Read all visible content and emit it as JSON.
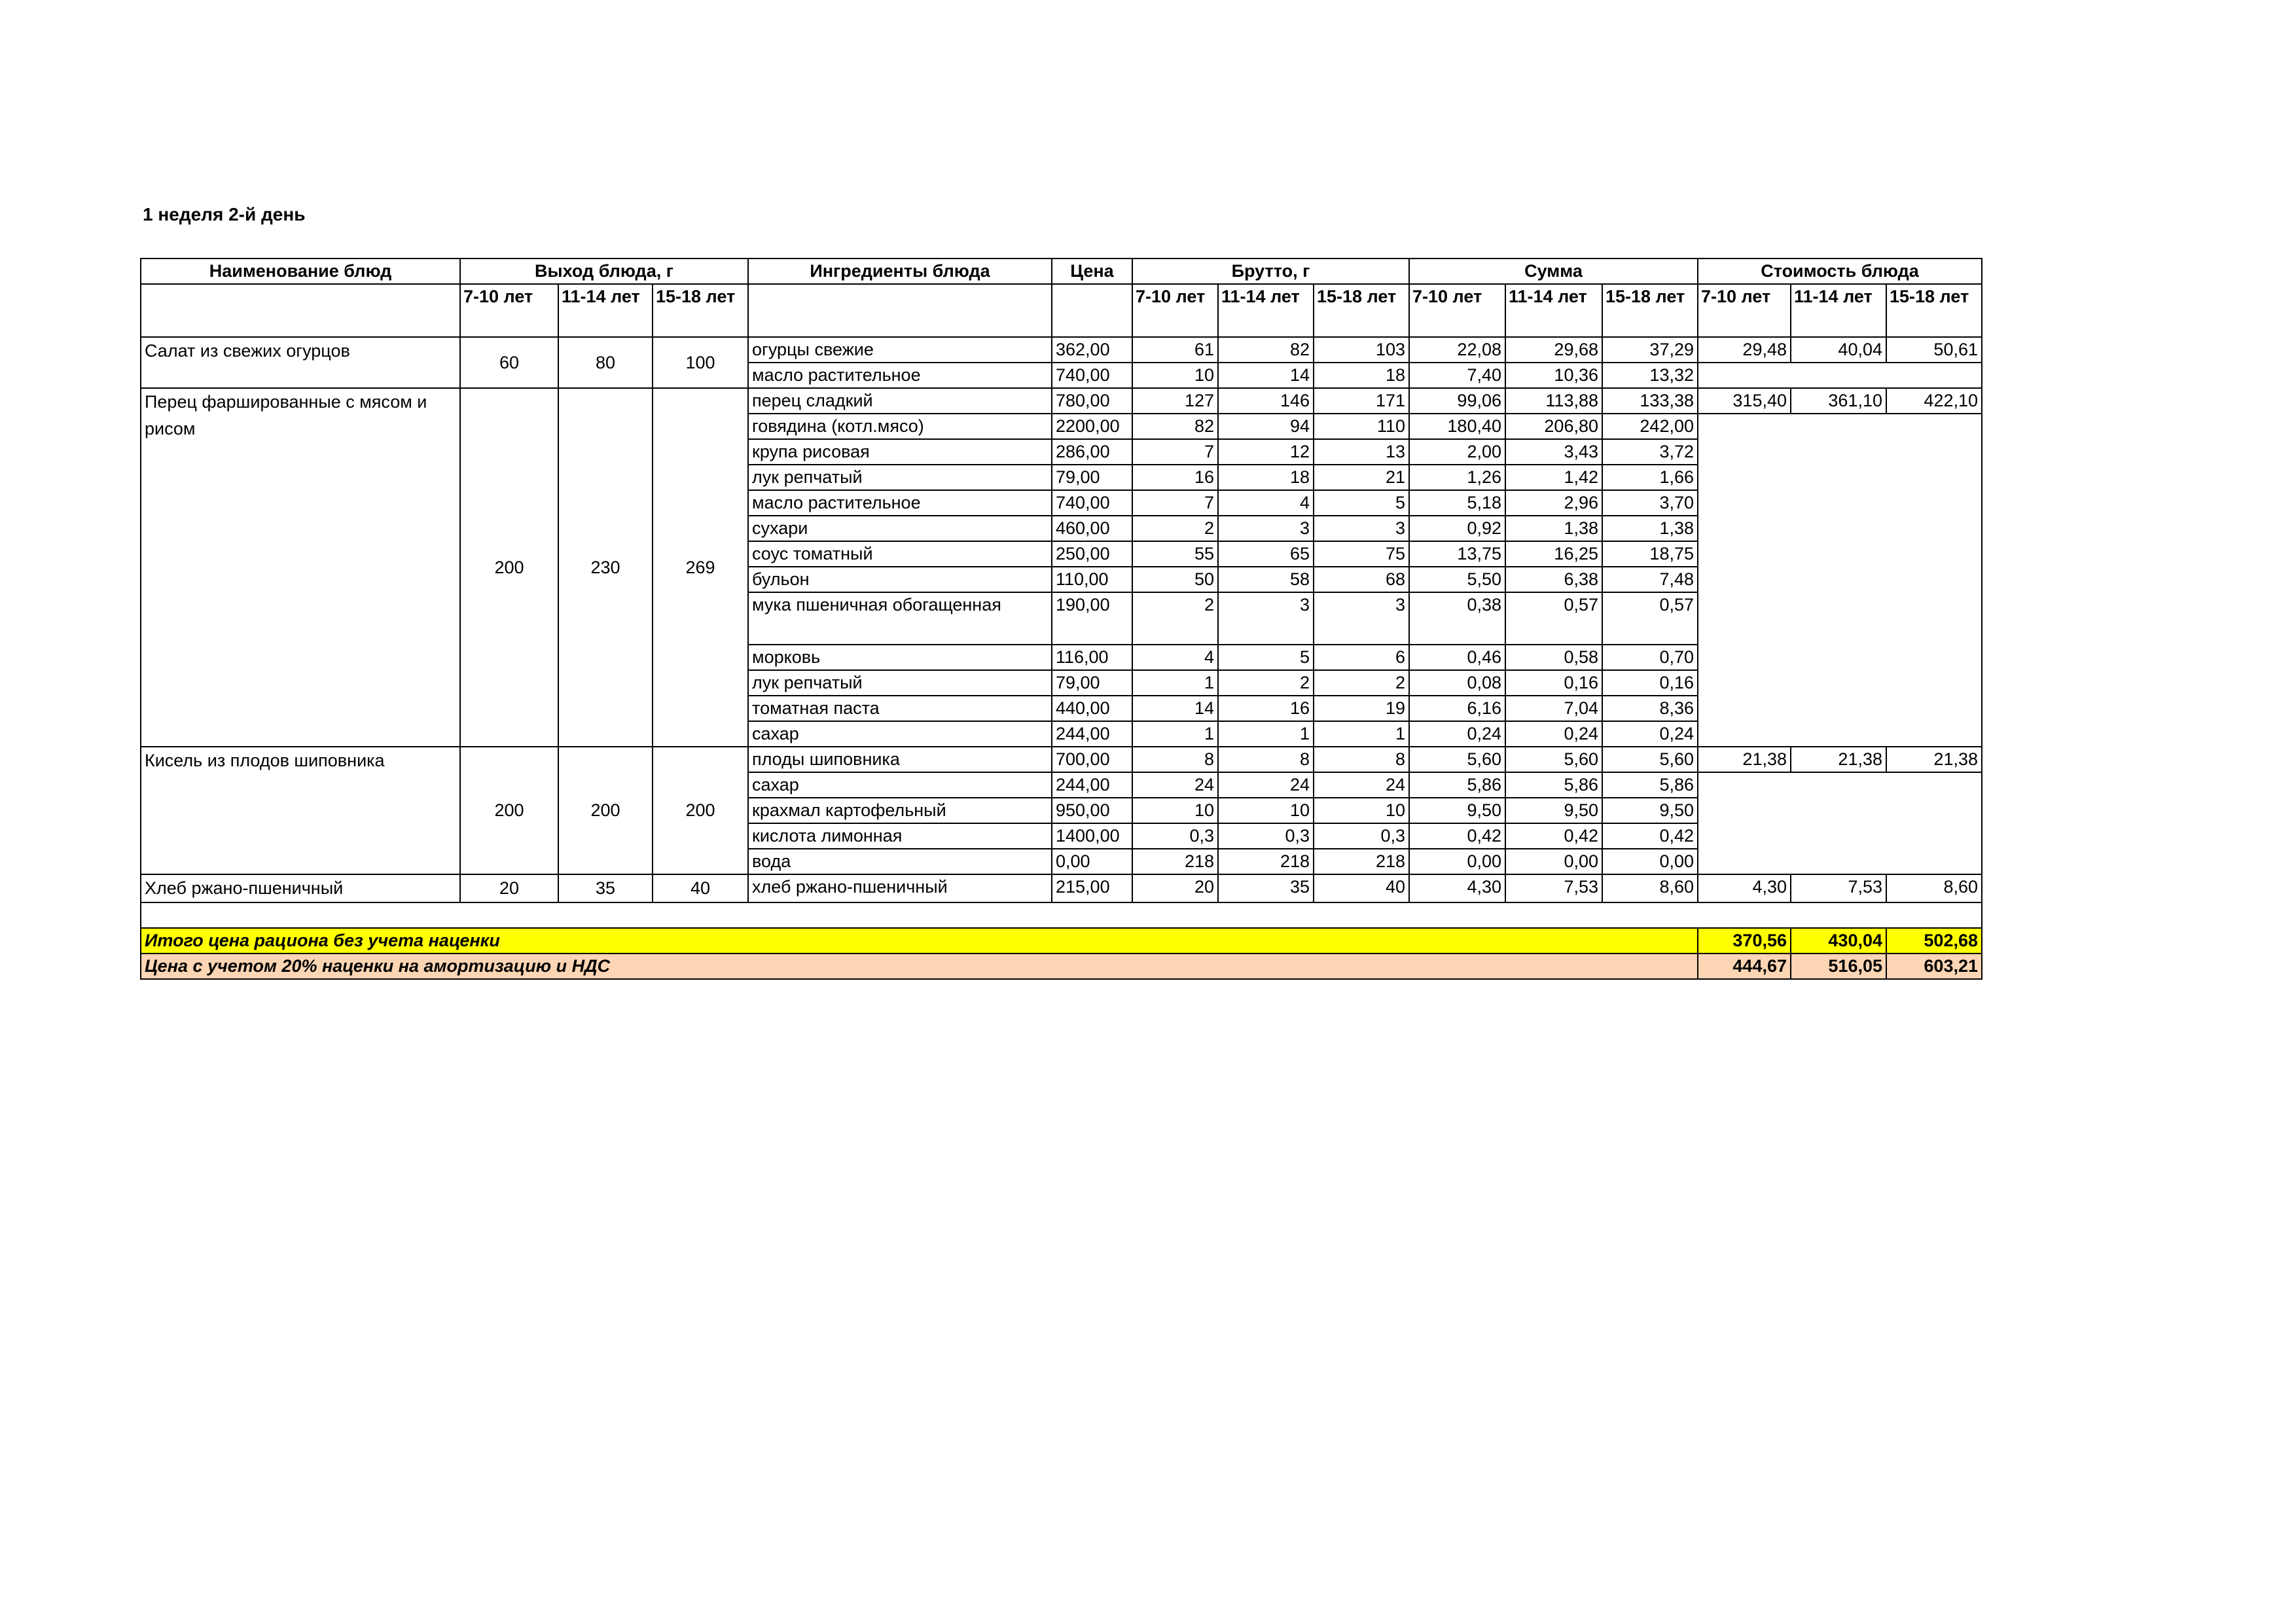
{
  "title": "1 неделя 2-й день",
  "headers": {
    "dish": "Наименование блюд",
    "yield": "Выход блюда, г",
    "ingredients": "Ингредиенты блюда",
    "price": "Цена",
    "brutto": "Брутто, г",
    "sum": "Сумма",
    "cost": "Стоимость блюда",
    "ages": [
      "7-10 лет",
      "11-14 лет",
      "15-18 лет"
    ]
  },
  "dishes": [
    {
      "name": "Салат из свежих огурцов",
      "yield": [
        "60",
        "80",
        "100"
      ],
      "cost": [
        "29,48",
        "40,04",
        "50,61"
      ],
      "ingredients": [
        {
          "name": "огурцы свежие",
          "price": "362,00",
          "brutto": [
            "61",
            "82",
            "103"
          ],
          "sum": [
            "22,08",
            "29,68",
            "37,29"
          ]
        },
        {
          "name": "масло растительное",
          "price": "740,00",
          "brutto": [
            "10",
            "14",
            "18"
          ],
          "sum": [
            "7,40",
            "10,36",
            "13,32"
          ]
        }
      ]
    },
    {
      "name": "Перец фаршированные с мясом и рисом",
      "yield": [
        "200",
        "230",
        "269"
      ],
      "cost": [
        "315,40",
        "361,10",
        "422,10"
      ],
      "ingredients": [
        {
          "name": "перец сладкий",
          "price": "780,00",
          "brutto": [
            "127",
            "146",
            "171"
          ],
          "sum": [
            "99,06",
            "113,88",
            "133,38"
          ]
        },
        {
          "name": "говядина (котл.мясо)",
          "price": "2200,00",
          "brutto": [
            "82",
            "94",
            "110"
          ],
          "sum": [
            "180,40",
            "206,80",
            "242,00"
          ]
        },
        {
          "name": "крупа рисовая",
          "price": "286,00",
          "brutto": [
            "7",
            "12",
            "13"
          ],
          "sum": [
            "2,00",
            "3,43",
            "3,72"
          ]
        },
        {
          "name": "лук репчатый",
          "price": "79,00",
          "brutto": [
            "16",
            "18",
            "21"
          ],
          "sum": [
            "1,26",
            "1,42",
            "1,66"
          ]
        },
        {
          "name": "масло растительное",
          "price": "740,00",
          "brutto": [
            "7",
            "4",
            "5"
          ],
          "sum": [
            "5,18",
            "2,96",
            "3,70"
          ]
        },
        {
          "name": "сухари",
          "price": "460,00",
          "brutto": [
            "2",
            "3",
            "3"
          ],
          "sum": [
            "0,92",
            "1,38",
            "1,38"
          ]
        },
        {
          "name": "соус томатный",
          "price": "250,00",
          "brutto": [
            "55",
            "65",
            "75"
          ],
          "sum": [
            "13,75",
            "16,25",
            "18,75"
          ]
        },
        {
          "name": "бульон",
          "price": "110,00",
          "brutto": [
            "50",
            "58",
            "68"
          ],
          "sum": [
            "5,50",
            "6,38",
            "7,48"
          ]
        },
        {
          "name": "мука пшеничная обогащенная",
          "price": "190,00",
          "brutto": [
            "2",
            "3",
            "3"
          ],
          "sum": [
            "0,38",
            "0,57",
            "0,57"
          ],
          "tall": true
        },
        {
          "name": "морковь",
          "price": "116,00",
          "brutto": [
            "4",
            "5",
            "6"
          ],
          "sum": [
            "0,46",
            "0,58",
            "0,70"
          ]
        },
        {
          "name": "лук репчатый",
          "price": "79,00",
          "brutto": [
            "1",
            "2",
            "2"
          ],
          "sum": [
            "0,08",
            "0,16",
            "0,16"
          ]
        },
        {
          "name": "томатная паста",
          "price": "440,00",
          "brutto": [
            "14",
            "16",
            "19"
          ],
          "sum": [
            "6,16",
            "7,04",
            "8,36"
          ]
        },
        {
          "name": "сахар",
          "price": "244,00",
          "brutto": [
            "1",
            "1",
            "1"
          ],
          "sum": [
            "0,24",
            "0,24",
            "0,24"
          ]
        }
      ]
    },
    {
      "name": "Кисель из плодов шиповника",
      "yield": [
        "200",
        "200",
        "200"
      ],
      "cost": [
        "21,38",
        "21,38",
        "21,38"
      ],
      "ingredients": [
        {
          "name": "плоды шиповника",
          "price": "700,00",
          "brutto": [
            "8",
            "8",
            "8"
          ],
          "sum": [
            "5,60",
            "5,60",
            "5,60"
          ]
        },
        {
          "name": "сахар",
          "price": "244,00",
          "brutto": [
            "24",
            "24",
            "24"
          ],
          "sum": [
            "5,86",
            "5,86",
            "5,86"
          ]
        },
        {
          "name": "крахмал картофельный",
          "price": "950,00",
          "brutto": [
            "10",
            "10",
            "10"
          ],
          "sum": [
            "9,50",
            "9,50",
            "9,50"
          ]
        },
        {
          "name": "кислота лимонная",
          "price": "1400,00",
          "brutto": [
            "0,3",
            "0,3",
            "0,3"
          ],
          "sum": [
            "0,42",
            "0,42",
            "0,42"
          ]
        },
        {
          "name": "вода",
          "price": "0,00",
          "brutto": [
            "218",
            "218",
            "218"
          ],
          "sum": [
            "0,00",
            "0,00",
            "0,00"
          ]
        }
      ]
    },
    {
      "name": "Хлеб ржано-пшеничный",
      "yield": [
        "20",
        "35",
        "40"
      ],
      "cost": [
        "4,30",
        "7,53",
        "8,60"
      ],
      "ingredients": [
        {
          "name": "хлеб ржано-пшеничный",
          "price": "215,00",
          "brutto": [
            "20",
            "35",
            "40"
          ],
          "sum": [
            "4,30",
            "7,53",
            "8,60"
          ]
        }
      ]
    }
  ],
  "totals": {
    "total_label": "Итого цена рациона без учета наценки",
    "total_values": [
      "370,56",
      "430,04",
      "502,68"
    ],
    "markup_label": "Цена с учетом 20% наценки на амортизацию и НДС",
    "markup_values": [
      "444,67",
      "516,05",
      "603,21"
    ]
  },
  "colors": {
    "total_bg": "#ffff00",
    "markup_bg": "#fcd5b4"
  }
}
